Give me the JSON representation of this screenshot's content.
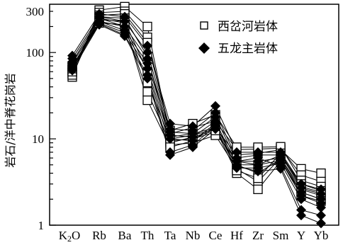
{
  "chart_data": {
    "type": "line",
    "ylabel": "岩石/洋中脊花岗岩",
    "yscale": "log",
    "ylim": [
      1,
      350
    ],
    "yticks": [
      "1",
      "10",
      "100",
      "300"
    ],
    "categories": [
      "K2O",
      "Rb",
      "Ba",
      "Th",
      "Ta",
      "Nb",
      "Ce",
      "Hf",
      "Zr",
      "Sm",
      "Y",
      "Yb"
    ],
    "legend": [
      {
        "label": "西岔河岩体",
        "marker": "open-square"
      },
      {
        "label": "五龙主岩体",
        "marker": "filled-diamond"
      }
    ],
    "legend_position": "top-right",
    "series": [
      {
        "group": 0,
        "values": [
          52,
          310,
          340,
          200,
          10.5,
          11.5,
          13.5,
          6.5,
          6.8,
          7.5,
          4.5,
          4.0
        ]
      },
      {
        "group": 0,
        "values": [
          58,
          290,
          300,
          150,
          11.5,
          13.5,
          16.0,
          7.5,
          7.6,
          7.8,
          3.8,
          3.2
        ]
      },
      {
        "group": 0,
        "values": [
          63,
          270,
          280,
          130,
          12.5,
          15.0,
          19.0,
          8.0,
          8.0,
          8.1,
          3.3,
          2.8
        ]
      },
      {
        "group": 0,
        "values": [
          55,
          260,
          250,
          90,
          9.5,
          10.0,
          12.0,
          5.5,
          5.0,
          6.5,
          3.0,
          2.5
        ]
      },
      {
        "group": 0,
        "values": [
          60,
          240,
          230,
          60,
          8.5,
          9.0,
          11.0,
          4.5,
          3.2,
          6.0,
          2.6,
          2.2
        ]
      },
      {
        "group": 0,
        "values": [
          65,
          250,
          220,
          45,
          10.0,
          11.0,
          13.0,
          4.0,
          2.6,
          5.5,
          2.4,
          2.0
        ]
      },
      {
        "group": 0,
        "values": [
          68,
          230,
          200,
          35,
          9.0,
          10.5,
          12.5,
          5.0,
          4.0,
          5.8,
          2.2,
          1.9
        ]
      },
      {
        "group": 0,
        "values": [
          70,
          220,
          210,
          28,
          8.0,
          9.5,
          14.0,
          4.3,
          3.5,
          6.8,
          2.8,
          2.4
        ]
      },
      {
        "group": 1,
        "values": [
          92,
          280,
          260,
          120,
          15.0,
          14.0,
          24.0,
          7.0,
          7.0,
          7.0,
          3.0,
          2.6
        ]
      },
      {
        "group": 1,
        "values": [
          85,
          260,
          230,
          100,
          13.0,
          12.5,
          20.0,
          6.0,
          6.5,
          6.5,
          2.7,
          2.3
        ]
      },
      {
        "group": 1,
        "values": [
          78,
          250,
          200,
          85,
          12.0,
          11.5,
          18.0,
          5.5,
          5.5,
          6.0,
          2.4,
          2.0
        ]
      },
      {
        "group": 1,
        "values": [
          75,
          230,
          180,
          75,
          11.0,
          10.5,
          16.0,
          5.0,
          5.0,
          5.6,
          2.2,
          1.8
        ]
      },
      {
        "group": 1,
        "values": [
          70,
          220,
          170,
          65,
          10.0,
          9.5,
          15.0,
          4.6,
          4.6,
          5.2,
          2.0,
          1.6
        ]
      },
      {
        "group": 1,
        "values": [
          66,
          215,
          160,
          55,
          7.0,
          8.5,
          14.0,
          5.5,
          6.0,
          4.8,
          1.5,
          1.3
        ]
      },
      {
        "group": 1,
        "values": [
          62,
          210,
          155,
          50,
          6.5,
          8.0,
          13.0,
          4.8,
          4.2,
          4.5,
          1.3,
          1.05
        ]
      }
    ]
  }
}
